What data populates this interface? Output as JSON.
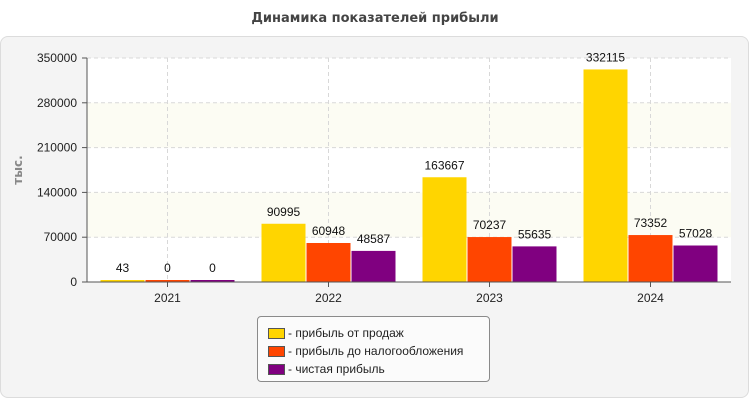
{
  "chart_data": {
    "type": "bar",
    "title": "Динамика показателей прибыли",
    "ylabel": "тыс.",
    "xlabel": "",
    "categories": [
      "2021",
      "2022",
      "2023",
      "2024"
    ],
    "ylim": [
      0,
      350000
    ],
    "yticks": [
      0,
      70000,
      140000,
      210000,
      280000,
      350000
    ],
    "grid": true,
    "legend_position": "bottom-center",
    "series": [
      {
        "name": "- прибыль от продаж",
        "color": "#ffd500",
        "values": [
          43,
          90995,
          163667,
          332115
        ]
      },
      {
        "name": "- прибыль до налогообложения",
        "color": "#ff4500",
        "values": [
          0,
          60948,
          70237,
          73352
        ]
      },
      {
        "name": "- чистая прибыль",
        "color": "#800080",
        "values": [
          0,
          48587,
          55635,
          57028
        ]
      }
    ]
  }
}
